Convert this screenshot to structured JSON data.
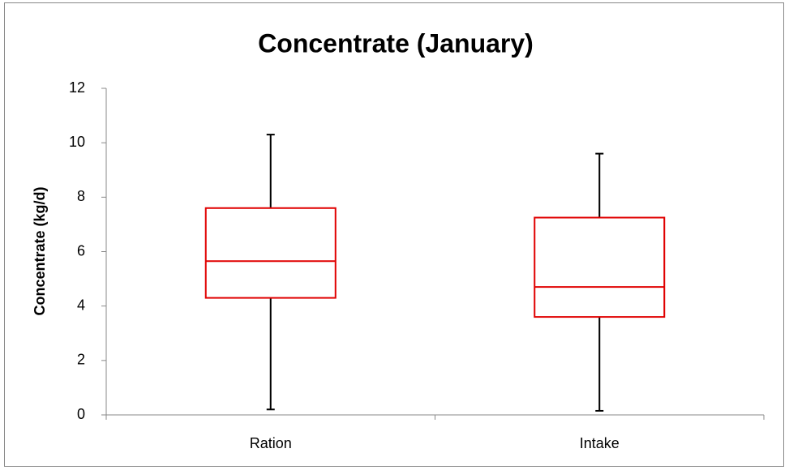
{
  "chart_data": {
    "type": "box",
    "title": "Concentrate (January)",
    "y_label": "Concentrate (kg/d)",
    "categories": [
      "Ration",
      "Intake"
    ],
    "min": [
      0.2,
      0.15
    ],
    "q1": [
      4.3,
      3.6
    ],
    "median": [
      5.65,
      4.7
    ],
    "q3": [
      7.6,
      7.25
    ],
    "max": [
      10.3,
      9.6
    ],
    "color": "#e00000",
    "whisker_color": "#000000",
    "ylim": [
      0,
      12
    ],
    "yticks": [
      0,
      2,
      4,
      6,
      8,
      10,
      12
    ],
    "grid": false
  }
}
